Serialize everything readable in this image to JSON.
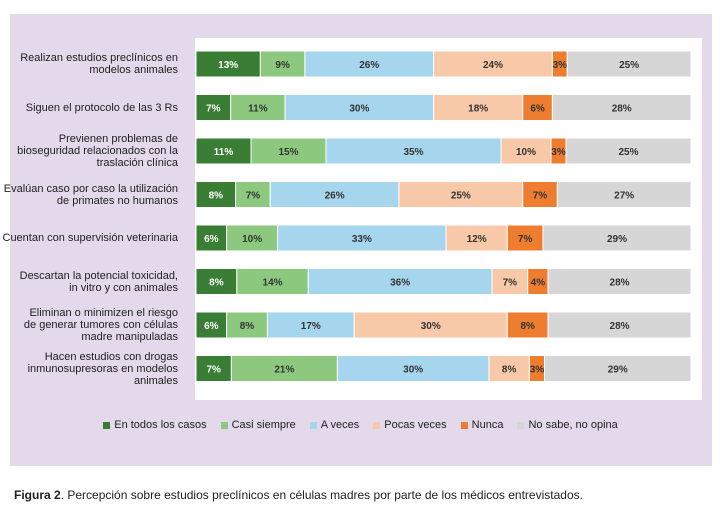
{
  "chart_data": {
    "type": "bar",
    "orientation": "horizontal",
    "stacked": "percent",
    "categories": [
      "Realizan estudios preclínicos en modelos animales",
      "Siguen el protocolo de las 3 Rs",
      "Previenen problemas de bioseguridad relacionados con la traslación clínica",
      "Evalúan caso por caso la utilización de primates no humanos",
      "Cuentan con supervisión veterinaria",
      "Descartan la potencial toxicidad, in vitro y con animales",
      "Eliminan o minimizen el riesgo de generar tumores con células madre manipuladas",
      "Hacen estudios con drogas inmunosupresoras en modelos animales"
    ],
    "category_lines": [
      [
        "Realizan estudios preclínicos en",
        "modelos animales"
      ],
      [
        "Siguen el protocolo de las 3 Rs"
      ],
      [
        "Previenen problemas de",
        "bioseguridad relacionados con la",
        "traslación clínica"
      ],
      [
        "Evalúan caso por caso la utilización",
        "de primates no humanos"
      ],
      [
        "Cuentan con supervisión veterinaria"
      ],
      [
        "Descartan la potencial toxicidad,",
        "in vitro y con animales"
      ],
      [
        "Eliminan o minimizen el riesgo",
        "de generar tumores con células",
        "madre manipuladas"
      ],
      [
        "Hacen estudios con drogas",
        "inmunosupresoras en modelos",
        "animales"
      ]
    ],
    "series": [
      {
        "name": "En todos los casos",
        "color": "#3a7d34",
        "values": [
          13,
          7,
          11,
          8,
          6,
          8,
          6,
          7
        ]
      },
      {
        "name": "Casi siempre",
        "color": "#8cc97f",
        "values": [
          9,
          11,
          15,
          7,
          10,
          14,
          8,
          21
        ]
      },
      {
        "name": "A veces",
        "color": "#a6d5ee",
        "values": [
          26,
          30,
          35,
          26,
          33,
          36,
          17,
          30
        ]
      },
      {
        "name": "Pocas veces",
        "color": "#f8c9a8",
        "values": [
          24,
          18,
          10,
          25,
          12,
          7,
          30,
          8
        ]
      },
      {
        "name": "Nunca",
        "color": "#ef7d2f",
        "values": [
          3,
          6,
          3,
          7,
          7,
          4,
          8,
          3
        ]
      },
      {
        "name": "No sabe, no opina",
        "color": "#d6d6d6",
        "values": [
          25,
          28,
          25,
          27,
          29,
          28,
          28,
          29
        ]
      }
    ],
    "value_suffix": "%",
    "legend_position": "bottom",
    "grid": false
  },
  "caption": {
    "label": "Figura 2",
    "text": ". Percepción sobre estudios preclínicos en células madres por parte de los médicos entrevistados."
  }
}
